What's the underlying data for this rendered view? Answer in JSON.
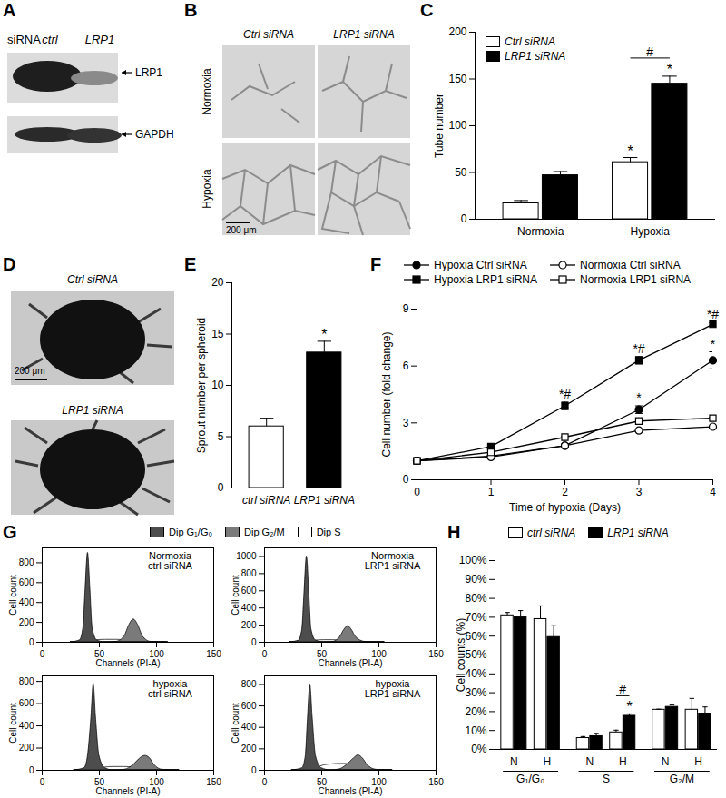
{
  "figure": {
    "A": {
      "panel": "A",
      "header": "siRNA",
      "lanes": [
        "ctrl",
        "LRP1"
      ],
      "blots": [
        "LRP1",
        "GAPDH"
      ]
    },
    "B": {
      "panel": "B",
      "columns": [
        "Ctrl siRNA",
        "LRP1 siRNA"
      ],
      "rows": [
        "Normoxia",
        "Hypoxia"
      ],
      "scale_bar": "200 μm"
    },
    "D": {
      "panel": "D",
      "images": [
        "Ctrl siRNA",
        "LRP1 siRNA"
      ],
      "scale_bar": "200 μm"
    }
  },
  "chart_data": [
    {
      "panel": "C",
      "type": "bar",
      "categories": [
        "Normoxia",
        "Hypoxia"
      ],
      "series": [
        {
          "name": "Ctrl siRNA",
          "color": "#ffffff",
          "values": [
            17,
            61
          ],
          "errors": [
            3,
            5
          ]
        },
        {
          "name": "LRP1 siRNA",
          "color": "#000000",
          "values": [
            47,
            145
          ],
          "errors": [
            4,
            8
          ]
        }
      ],
      "y_label": "Tube number",
      "ylim": [
        0,
        200
      ],
      "yticks": [
        0,
        50,
        100,
        150,
        200
      ],
      "legend": "top-left",
      "annotations": [
        {
          "text": "*",
          "category": "Hypoxia",
          "series": "Ctrl siRNA"
        },
        {
          "text": "*",
          "category": "Hypoxia",
          "series": "LRP1 siRNA"
        },
        {
          "text": "#",
          "category": "Hypoxia",
          "series": [
            "Ctrl siRNA",
            "LRP1 siRNA"
          ]
        }
      ]
    },
    {
      "panel": "E",
      "type": "bar",
      "categories": [
        "ctrl siRNA",
        "LRP1 siRNA"
      ],
      "values": [
        6,
        13.2
      ],
      "errors": [
        0.8,
        1.1
      ],
      "colors": [
        "#ffffff",
        "#000000"
      ],
      "y_label": "Sprout number per spheroid",
      "ylim": [
        0,
        20
      ],
      "yticks": [
        0,
        5,
        10,
        15,
        20
      ],
      "annotations": [
        {
          "text": "*",
          "category": "LRP1 siRNA"
        }
      ]
    },
    {
      "panel": "F",
      "type": "line",
      "x": [
        0,
        1,
        2,
        3,
        4
      ],
      "series": [
        {
          "name": "Hypoxia Ctrl siRNA",
          "color": "#000000",
          "marker": "circle",
          "values": [
            1,
            1.25,
            1.8,
            3.7,
            6.3
          ],
          "errors": [
            0.05,
            0.1,
            0.1,
            0.2,
            0.45
          ]
        },
        {
          "name": "Hypoxia LRP1 siRNA",
          "color": "#000000",
          "marker": "square",
          "values": [
            1,
            1.75,
            3.9,
            6.3,
            8.2
          ],
          "errors": [
            0.05,
            0.1,
            0.2,
            0.2,
            0.1
          ]
        },
        {
          "name": "Normoxia Ctrl siRNA",
          "color": "#000000",
          "marker": "circle-open",
          "values": [
            1,
            1.2,
            1.8,
            2.6,
            2.8
          ],
          "errors": [
            0.03,
            0.05,
            0.05,
            0.05,
            0.05
          ]
        },
        {
          "name": "Normoxia LRP1 siRNA",
          "color": "#000000",
          "marker": "square-open",
          "values": [
            1,
            1.45,
            2.25,
            3.1,
            3.25
          ],
          "errors": [
            0.03,
            0.05,
            0.05,
            0.05,
            0.05
          ]
        }
      ],
      "x_label": "Time of hypoxia (Days)",
      "y_label": "Cell number (fold change)",
      "xlim": [
        0,
        4
      ],
      "xticks": [
        0,
        1,
        2,
        3,
        4
      ],
      "ylim": [
        0,
        9
      ],
      "yticks": [
        0,
        3,
        6,
        9
      ],
      "legend": "top",
      "annotations": [
        {
          "text": "*#",
          "series": "Hypoxia LRP1 siRNA",
          "x": 2
        },
        {
          "text": "*#",
          "series": "Hypoxia LRP1 siRNA",
          "x": 3
        },
        {
          "text": "*#",
          "series": "Hypoxia LRP1 siRNA",
          "x": 4
        },
        {
          "text": "*",
          "series": "Hypoxia Ctrl siRNA",
          "x": 3
        },
        {
          "text": "*",
          "series": "Hypoxia Ctrl siRNA",
          "x": 4
        }
      ]
    },
    {
      "panel": "G",
      "type": "histogram",
      "x_label": "Channels (PI-A)",
      "y_label": "Cell count",
      "xlim": [
        0,
        150
      ],
      "xticks": [
        0,
        50,
        100,
        150
      ],
      "legend": "top",
      "subplots": [
        {
          "title": [
            "Normoxia",
            "ctrl siRNA"
          ],
          "ylim": [
            0,
            950
          ],
          "yticks": [
            0,
            200,
            400,
            600,
            800
          ],
          "x": [
            25,
            33,
            36,
            38,
            40,
            42,
            44,
            48,
            55,
            65,
            72,
            76,
            80,
            84,
            88,
            95,
            110
          ],
          "series": [
            {
              "name": "Dip G₁/G₀",
              "color": "#4d4d4d",
              "values": [
                0,
                20,
                150,
                550,
                900,
                550,
                150,
                20,
                0,
                0,
                0,
                0,
                0,
                0,
                0,
                0,
                0
              ]
            },
            {
              "name": "Dip G₂/M",
              "color": "#7a7a7a",
              "values": [
                0,
                0,
                0,
                0,
                0,
                0,
                0,
                0,
                0,
                5,
                60,
                170,
                230,
                170,
                60,
                5,
                0
              ]
            },
            {
              "name": "Dip S",
              "color": "#ffffff",
              "values": [
                0,
                0,
                0,
                0,
                0,
                0,
                10,
                20,
                25,
                25,
                20,
                10,
                0,
                0,
                0,
                0,
                0
              ]
            }
          ]
        },
        {
          "title": [
            "Normoxia",
            "LRP1 siRNA"
          ],
          "ylim": [
            0,
            1100
          ],
          "yticks": [
            0,
            200,
            400,
            600,
            800,
            1000
          ],
          "x": [
            22,
            30,
            33,
            35,
            37,
            39,
            41,
            45,
            52,
            60,
            66,
            70,
            73,
            76,
            80,
            88,
            105
          ],
          "series": [
            {
              "name": "Dip G₁/G₀",
              "color": "#4d4d4d",
              "values": [
                0,
                20,
                150,
                600,
                1000,
                600,
                150,
                20,
                0,
                0,
                0,
                0,
                0,
                0,
                0,
                0,
                0
              ]
            },
            {
              "name": "Dip G₂/M",
              "color": "#7a7a7a",
              "values": [
                0,
                0,
                0,
                0,
                0,
                0,
                0,
                0,
                0,
                5,
                60,
                150,
                190,
                150,
                60,
                5,
                0
              ]
            },
            {
              "name": "Dip S",
              "color": "#ffffff",
              "values": [
                0,
                0,
                0,
                0,
                0,
                0,
                10,
                20,
                25,
                25,
                20,
                10,
                0,
                0,
                0,
                0,
                0
              ]
            }
          ]
        },
        {
          "title": [
            "hypoxia",
            "ctrl siRNA"
          ],
          "ylim": [
            0,
            850
          ],
          "yticks": [
            0,
            200,
            400,
            600,
            800
          ],
          "x": [
            28,
            37,
            40,
            43,
            45,
            47,
            50,
            55,
            62,
            72,
            80,
            86,
            90,
            94,
            98,
            105,
            120
          ],
          "series": [
            {
              "name": "Dip G₁/G₀",
              "color": "#4d4d4d",
              "values": [
                0,
                20,
                130,
                480,
                780,
                480,
                130,
                20,
                0,
                0,
                0,
                0,
                0,
                0,
                0,
                0,
                0
              ]
            },
            {
              "name": "Dip G₂/M",
              "color": "#7a7a7a",
              "values": [
                0,
                0,
                0,
                0,
                0,
                0,
                0,
                0,
                0,
                5,
                50,
                110,
                130,
                110,
                50,
                5,
                0
              ]
            },
            {
              "name": "Dip S",
              "color": "#ffffff",
              "values": [
                0,
                0,
                0,
                0,
                0,
                0,
                10,
                25,
                30,
                30,
                25,
                15,
                0,
                0,
                0,
                0,
                0
              ]
            }
          ]
        },
        {
          "title": [
            "hypoxia",
            "LRP1 siRNA"
          ],
          "ylim": [
            0,
            880
          ],
          "yticks": [
            0,
            200,
            400,
            600,
            800
          ],
          "x": [
            24,
            33,
            36,
            38,
            40,
            42,
            45,
            50,
            58,
            66,
            72,
            78,
            82,
            86,
            90,
            98,
            112
          ],
          "series": [
            {
              "name": "Dip G₁/G₀",
              "color": "#4d4d4d",
              "values": [
                0,
                20,
                130,
                500,
                800,
                500,
                130,
                20,
                0,
                0,
                0,
                0,
                0,
                0,
                0,
                0,
                0
              ]
            },
            {
              "name": "Dip G₂/M",
              "color": "#7a7a7a",
              "values": [
                0,
                0,
                0,
                0,
                0,
                0,
                0,
                0,
                0,
                10,
                50,
                110,
                140,
                110,
                50,
                5,
                0
              ]
            },
            {
              "name": "Dip S",
              "color": "#ffffff",
              "values": [
                0,
                0,
                0,
                0,
                0,
                0,
                15,
                40,
                55,
                60,
                60,
                50,
                30,
                0,
                0,
                0,
                0
              ]
            }
          ]
        }
      ]
    },
    {
      "panel": "H",
      "type": "bar",
      "groups": [
        "G₁/G₀",
        "S",
        "G₂/M"
      ],
      "categories": [
        "N",
        "H"
      ],
      "series": [
        {
          "name": "ctrl siRNA",
          "color": "#ffffff",
          "values": [
            [
              71,
              69
            ],
            [
              6,
              9
            ],
            [
              21,
              21
            ]
          ],
          "errors": [
            [
              1.5,
              7
            ],
            [
              0.8,
              1.2
            ],
            [
              0.3,
              6
            ]
          ]
        },
        {
          "name": "LRP1 siRNA",
          "color": "#000000",
          "values": [
            [
              70,
              59.5
            ],
            [
              7,
              17.8
            ],
            [
              22.5,
              19
            ]
          ],
          "errors": [
            [
              3.5,
              6
            ],
            [
              1.5,
              1
            ],
            [
              1,
              3.5
            ]
          ]
        }
      ],
      "y_label": "Cell counts (%)",
      "ylim": [
        0,
        100
      ],
      "yticks": [
        {
          "value": 0,
          "label": "0%"
        },
        {
          "value": 10,
          "label": "10%"
        },
        {
          "value": 20,
          "label": "20%"
        },
        {
          "value": 30,
          "label": "30%"
        },
        {
          "value": 40,
          "label": "40%"
        },
        {
          "value": 50,
          "label": "50%"
        },
        {
          "value": 60,
          "label": "60%"
        },
        {
          "value": 70,
          "label": "70%"
        },
        {
          "value": 80,
          "label": "80%"
        },
        {
          "value": 90,
          "label": "90%"
        },
        {
          "value": 100,
          "label": "100%"
        }
      ],
      "legend": "top",
      "annotations": [
        {
          "text": "*",
          "group": "S",
          "category": "H",
          "series": "LRP1 siRNA"
        },
        {
          "text": "#",
          "group": "S",
          "category": "H",
          "series": [
            "ctrl siRNA",
            "LRP1 siRNA"
          ]
        }
      ]
    }
  ]
}
